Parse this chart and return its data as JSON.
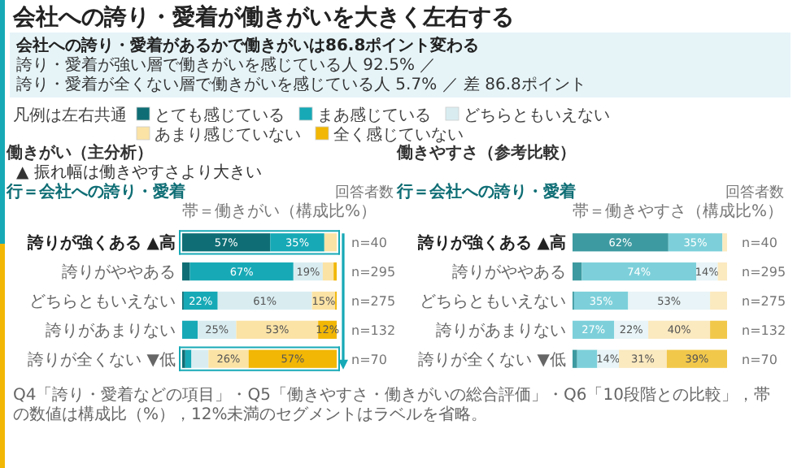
{
  "chart_data": [
    {
      "type": "other",
      "title": "会社への誇り・愛着が働きがいを大きく左右する",
      "subtitle": "会社への誇り・愛着があるかで働きがいは86.8ポイント変わる",
      "annotations": [
        "誇り・愛着が強い層で働きがいを感じている人 92.5% ／",
        "誇り・愛着が全くない層で働きがいを感じている人 5.7% ／ 差 86.8ポイント",
        "Q4「誇り・愛着などの項目」・Q5「働きやすさ・働きがいの総合評価」・Q6「10段階との比較」，帯の数値は構成比（%），12%未満のセグメントはラベルを省略。"
      ]
    },
    {
      "type": "bar",
      "orientation": "horizontal",
      "stacked": true,
      "title": "働きがい（主分析）",
      "ylabel": "行＝会社への誇り・愛着",
      "xlabel": "帯＝働きがい（構成比%）",
      "y2label": "回答者数",
      "legend": "top",
      "legend_title": "凡例は左右共通",
      "tick_labels": "y",
      "xlim": [
        0,
        100
      ],
      "categories": [
        "誇りが強くある ▲高",
        "誇りがややある",
        "どちらともいえない",
        "誇りがあまりない",
        "誇りが全くない ▼低"
      ],
      "series": [
        {
          "name": "とても感じている",
          "color": "#0f6e75",
          "values": [
            57,
            5,
            1,
            0,
            2
          ],
          "value_labels": [
            "57%",
            null,
            null,
            null,
            null
          ]
        },
        {
          "name": "まあ感じている",
          "color": "#17a9b6",
          "values": [
            35,
            67,
            22,
            10,
            4
          ],
          "value_labels": [
            "35%",
            "67%",
            "22%",
            null,
            null
          ]
        },
        {
          "name": "どちらともいえない",
          "color": "#d9edf1",
          "values": [
            0,
            19,
            61,
            25,
            11
          ],
          "value_labels": [
            null,
            "19%",
            "61%",
            "25%",
            null
          ]
        },
        {
          "name": "あまり感じていない",
          "color": "#fbe3a6",
          "values": [
            8,
            7,
            15,
            53,
            26
          ],
          "value_labels": [
            null,
            null,
            "15%",
            "53%",
            "26%"
          ]
        },
        {
          "name": "全く感じていない",
          "color": "#f2b705",
          "values": [
            0,
            2,
            1,
            12,
            57
          ],
          "value_labels": [
            null,
            null,
            null,
            "12%",
            "57%"
          ]
        }
      ],
      "annotations": [
        "▲ 振れ幅は働きやすさより大きい",
        "n=40",
        "n=295",
        "n=275",
        "n=132",
        "n=70"
      ]
    },
    {
      "type": "bar",
      "orientation": "horizontal",
      "stacked": true,
      "title": "働きやすさ（参考比較）",
      "ylabel": "行＝会社への誇り・愛着",
      "xlabel": "帯＝働きやすさ（構成比%）",
      "y2label": "回答者数",
      "tick_labels": "y",
      "xlim": [
        0,
        100
      ],
      "categories": [
        "誇りが強くある ▲高",
        "誇りがややある",
        "どちらともいえない",
        "誇りがあまりない",
        "誇りが全くない ▼低"
      ],
      "series": [
        {
          "color": "#3d9aa0",
          "values": [
            62,
            6,
            1,
            0,
            3
          ],
          "value_labels": [
            "62%",
            null,
            null,
            null,
            null
          ]
        },
        {
          "color": "#7dd0da",
          "values": [
            35,
            74,
            35,
            27,
            13
          ],
          "value_labels": [
            "35%",
            "74%",
            "35%",
            "27%",
            null
          ]
        },
        {
          "color": "#e8f4f7",
          "values": [
            0,
            14,
            53,
            22,
            14
          ],
          "value_labels": [
            null,
            "14%",
            "53%",
            "22%",
            "14%"
          ]
        },
        {
          "color": "#fbe9bf",
          "values": [
            3,
            6,
            11,
            40,
            31
          ],
          "value_labels": [
            null,
            null,
            null,
            "40%",
            "31%"
          ]
        },
        {
          "color": "#f2c84b",
          "values": [
            0,
            0,
            0,
            11,
            39
          ],
          "value_labels": [
            null,
            null,
            null,
            null,
            "39%"
          ]
        }
      ],
      "annotations": [
        "n=40",
        "n=295",
        "n=275",
        "n=132",
        "n=70"
      ]
    }
  ]
}
